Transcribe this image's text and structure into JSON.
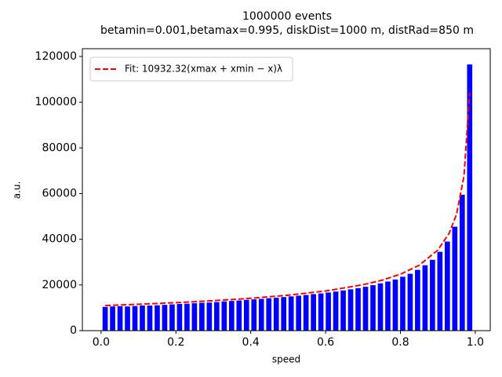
{
  "chart_data": {
    "type": "histogram",
    "title": "1000000 events",
    "subtitle": "betamin=0.001,betamax=0.995, diskDist=1000 m, distRad=850 m",
    "xlabel": "speed",
    "ylabel": "a.u.",
    "bins": [
      0.001,
      0.02088,
      0.04076,
      0.06064,
      0.08052,
      0.1004,
      0.12028,
      0.14016,
      0.16004,
      0.17992,
      0.1998,
      0.21968,
      0.23956,
      0.25944,
      0.27932,
      0.2992,
      0.31908,
      0.33896,
      0.35884,
      0.37872,
      0.3986,
      0.41848,
      0.43836,
      0.45824,
      0.47812,
      0.498,
      0.51788,
      0.53776,
      0.55764,
      0.57752,
      0.5974,
      0.61728,
      0.63716,
      0.65704,
      0.67692,
      0.6968,
      0.71668,
      0.73656,
      0.75644,
      0.77632,
      0.7962,
      0.81608,
      0.83596,
      0.85584,
      0.87572,
      0.8956,
      0.91548,
      0.93536,
      0.95524,
      0.97512,
      0.995
    ],
    "values": [
      10400,
      10600,
      10700,
      10600,
      10800,
      11000,
      11000,
      11100,
      11300,
      11500,
      11700,
      11800,
      12000,
      12200,
      12300,
      12500,
      12800,
      13000,
      13200,
      13500,
      13700,
      13900,
      14200,
      14400,
      14700,
      15000,
      15300,
      15600,
      16000,
      16300,
      16700,
      17100,
      17600,
      18100,
      18600,
      19200,
      19900,
      20700,
      21500,
      22400,
      23600,
      24900,
      26600,
      28600,
      31000,
      34500,
      39000,
      45500,
      59500,
      116500
    ],
    "color": "#0000ff",
    "fit": {
      "name": "Fit: 10932.32(xmax + xmin − x)λ",
      "color": "#ff0000",
      "x": [
        0.011,
        0.1,
        0.2,
        0.3,
        0.4,
        0.5,
        0.6,
        0.7,
        0.75,
        0.8,
        0.85,
        0.9,
        0.93,
        0.95,
        0.97,
        0.985
      ],
      "y": [
        11015,
        11549,
        12253,
        13103,
        14161,
        15522,
        17372,
        20092,
        22040,
        24694,
        28610,
        35285,
        42553,
        50965,
        67816,
        104216
      ]
    },
    "legend": "upper left",
    "xlim": [
      -0.05,
      1.04
    ],
    "ylim": [
      0,
      123400
    ],
    "xticks": [
      {
        "value": 0,
        "label": "0.0"
      },
      0.2,
      0.4,
      0.6,
      0.8,
      {
        "value": 1,
        "label": "1.0"
      }
    ],
    "yticks": [
      0,
      20000,
      40000,
      60000,
      80000,
      100000,
      120000
    ]
  }
}
